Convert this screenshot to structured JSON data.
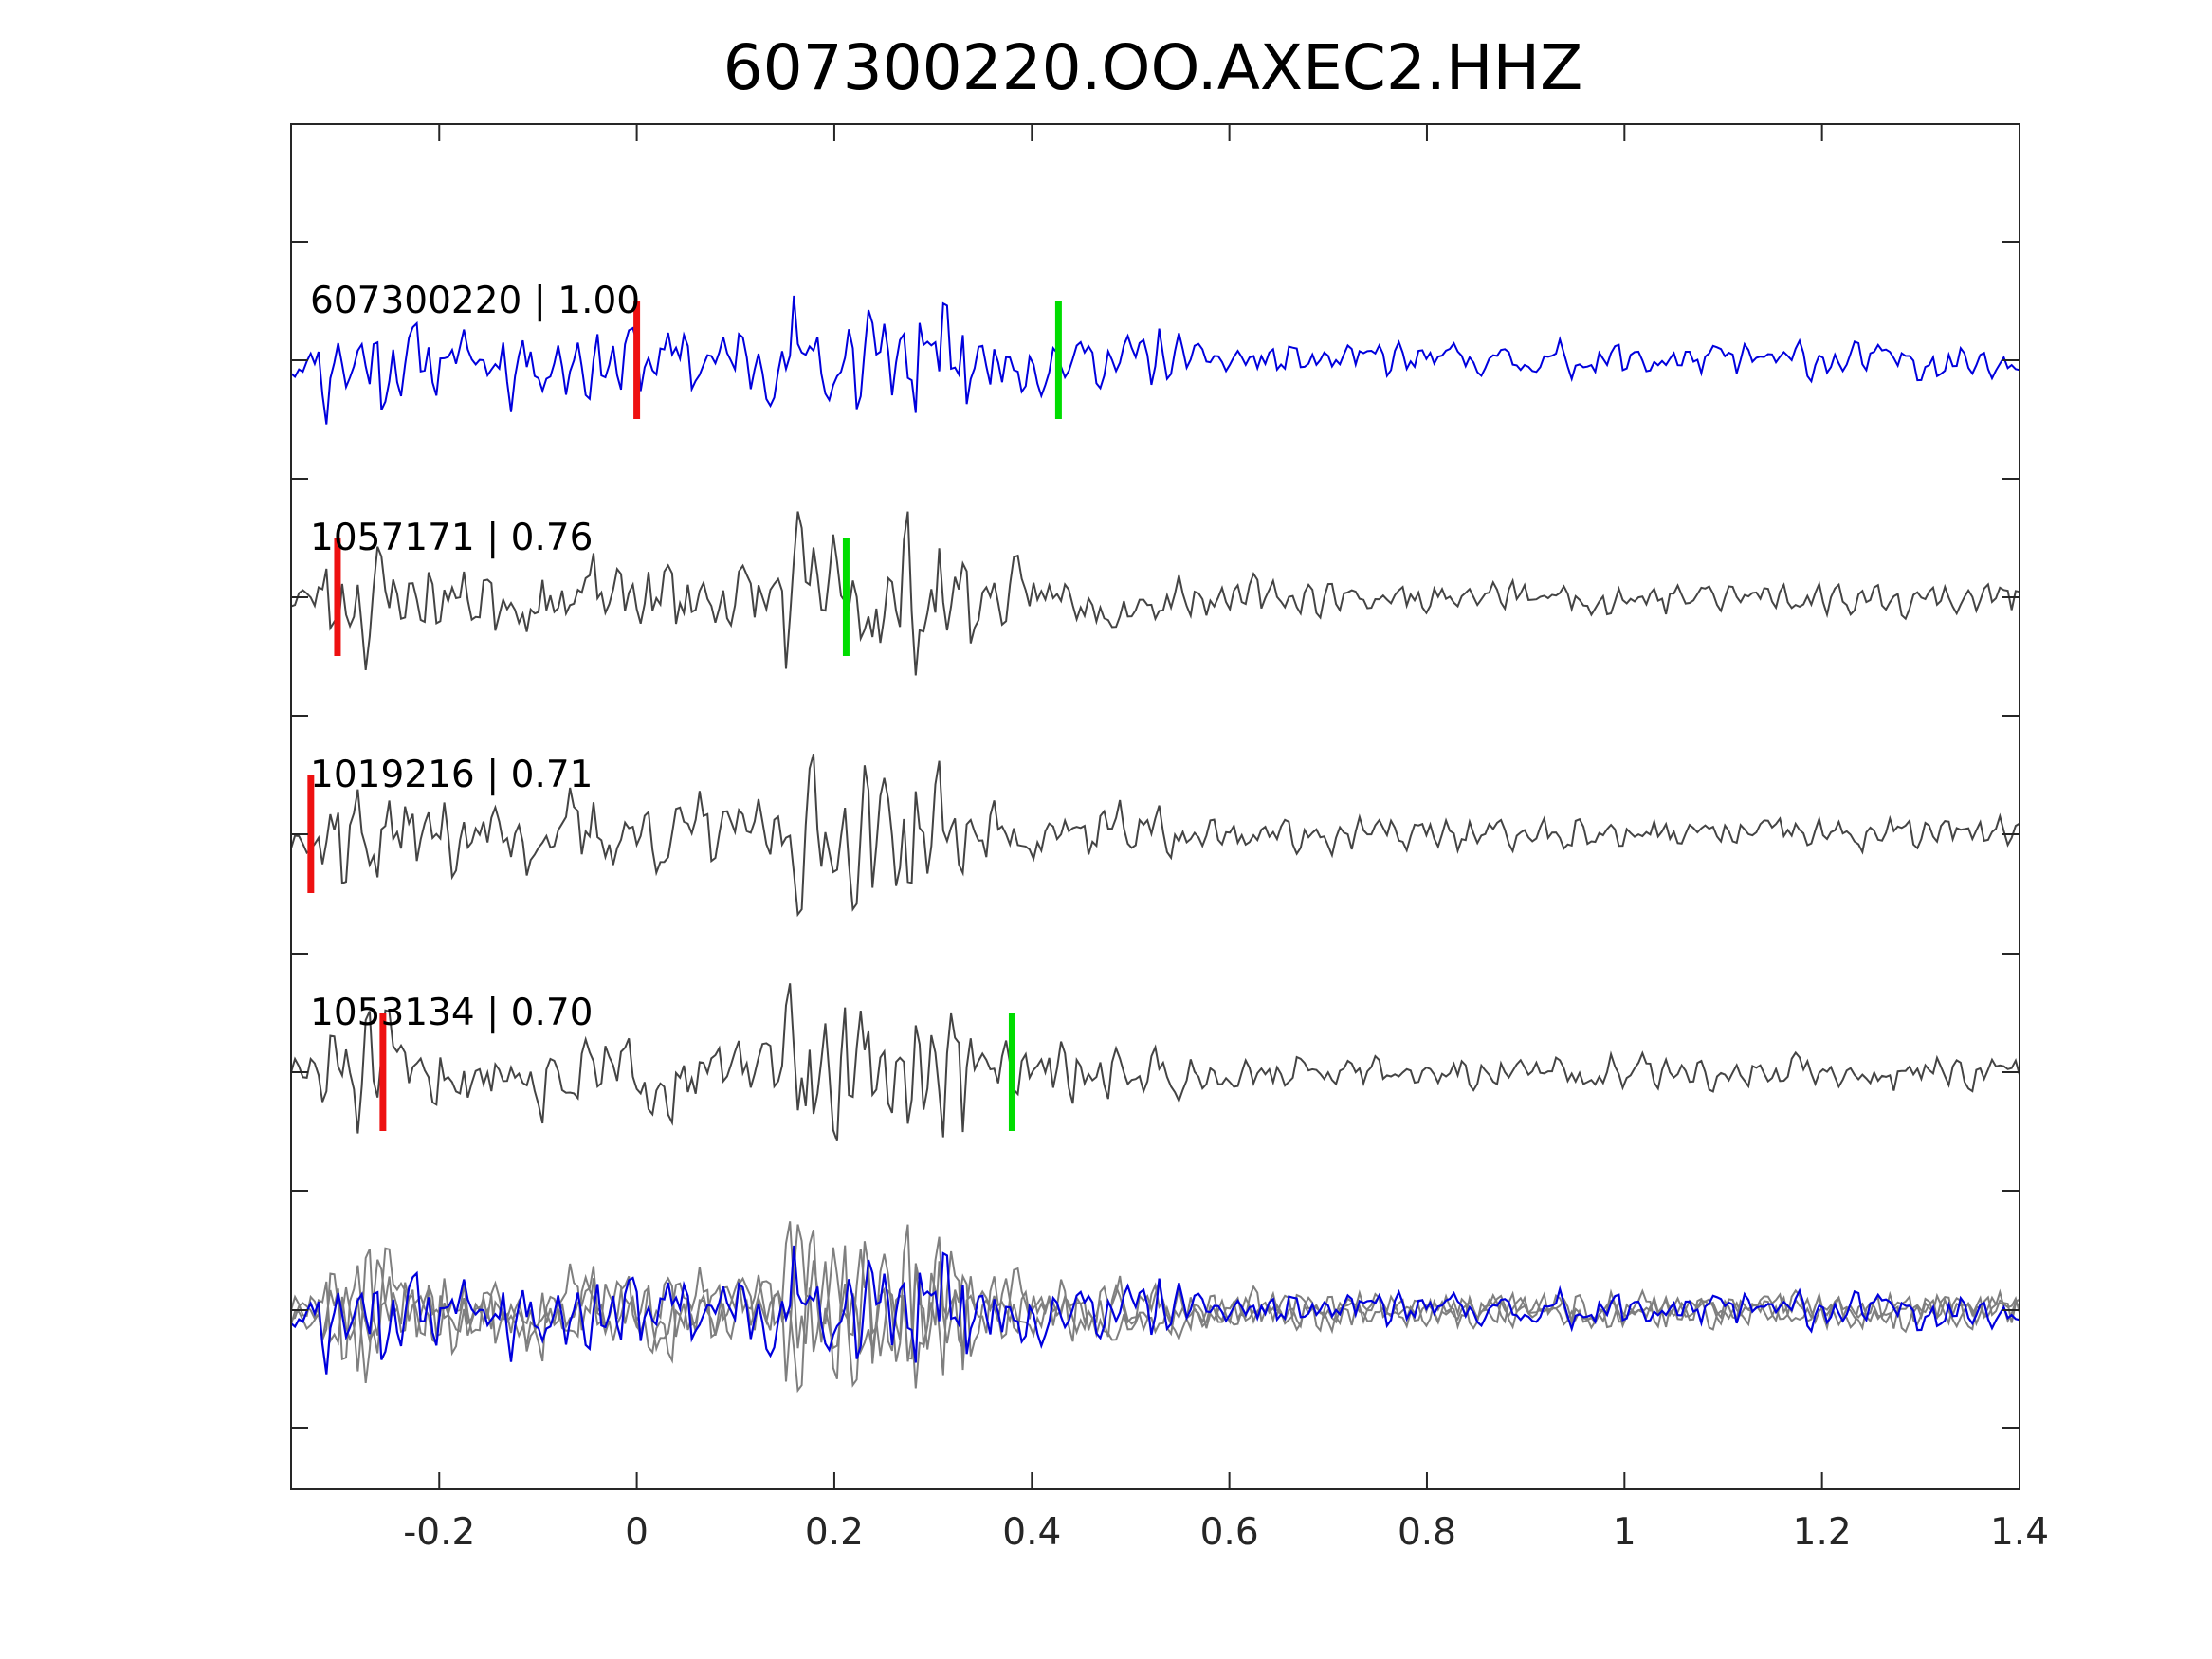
{
  "chart_data": {
    "type": "line",
    "title": "607300220.OO.AXEC2.HHZ",
    "xlabel": "",
    "ylabel": "",
    "xlim": [
      -0.35,
      1.4
    ],
    "x_ticks": [
      "-0.2",
      "0",
      "0.2",
      "0.4",
      "0.6",
      "0.8",
      "1",
      "1.2",
      "1.4"
    ],
    "x_tick_values": [
      -0.2,
      0,
      0.2,
      0.4,
      0.6,
      0.8,
      1,
      1.2,
      1.4
    ],
    "grid": false,
    "colors": {
      "primary": "#0000dd",
      "secondary": "#444444",
      "overlay_gray": "#7f7f7f",
      "p_pick": "#ee1111",
      "s_pick": "#00dd00"
    },
    "traces": [
      {
        "id": "607300220",
        "cc": "1.00",
        "label": "607300220 | 1.00",
        "color": "#0000dd",
        "p_pick": 0.0,
        "s_pick": 0.427,
        "seed": 11
      },
      {
        "id": "1057171",
        "cc": "0.76",
        "label": "1057171 | 0.76",
        "color": "#444444",
        "p_pick": -0.303,
        "s_pick": 0.212,
        "seed": 23
      },
      {
        "id": "1019216",
        "cc": "0.71",
        "label": "1019216 | 0.71",
        "color": "#444444",
        "p_pick": -0.33,
        "s_pick": null,
        "seed": 37
      },
      {
        "id": "1053134",
        "cc": "0.70",
        "label": "1053134 | 0.70",
        "color": "#444444",
        "p_pick": -0.257,
        "s_pick": 0.38,
        "seed": 51
      }
    ],
    "overlay": {
      "description_visible": false,
      "includes": [
        "607300220",
        "1057171",
        "1019216",
        "1053134"
      ]
    }
  }
}
